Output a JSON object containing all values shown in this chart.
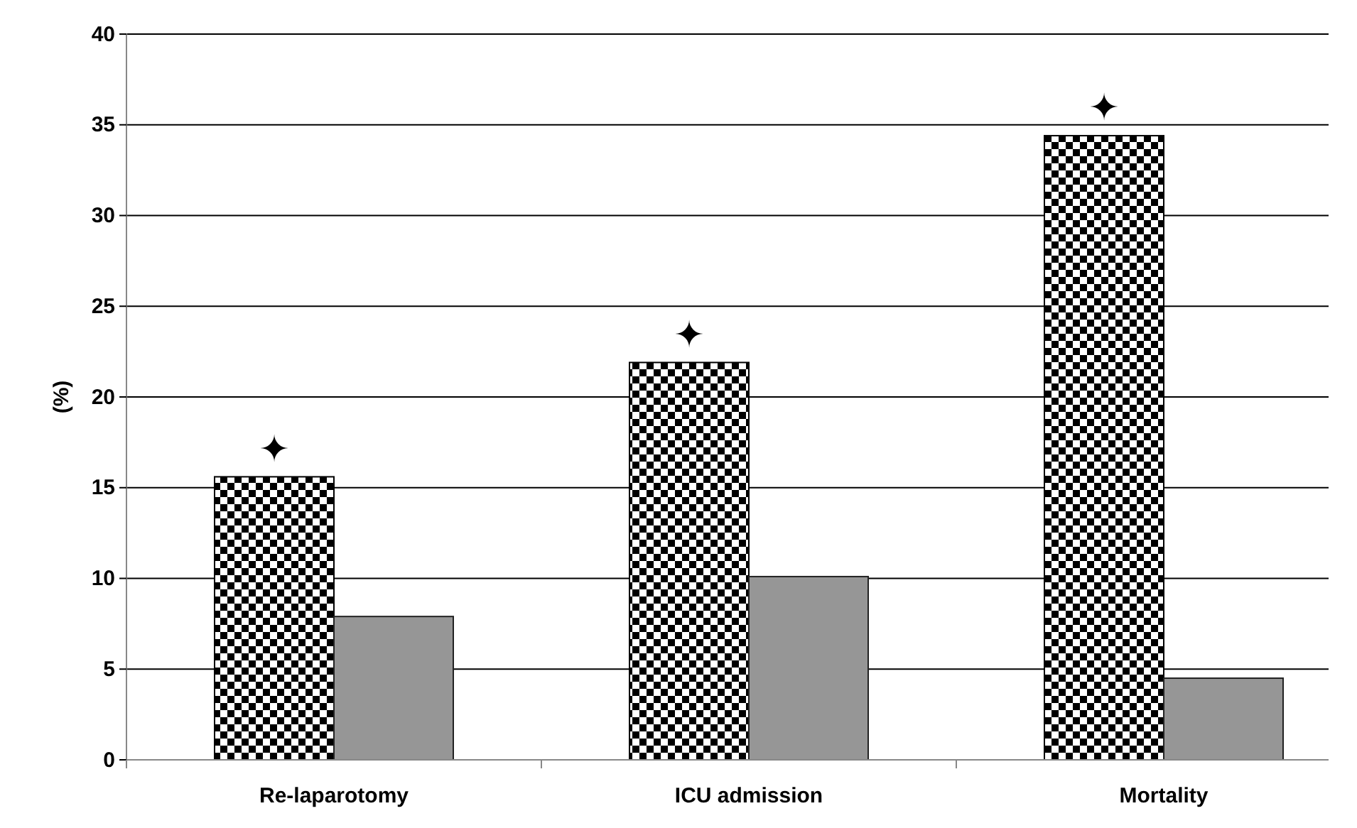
{
  "chart_data": {
    "type": "bar",
    "ylabel": "(%)",
    "categories": [
      "Re-laparotomy",
      "ICU admission",
      "Mortality"
    ],
    "series": [
      {
        "color": "#000000",
        "values": [
          15.6,
          21.9,
          34.4
        ]
      },
      {
        "color": "#969696",
        "values": [
          7.9,
          10.1,
          4.5
        ]
      }
    ],
    "ylim": [
      0,
      40
    ],
    "yticks": [
      0,
      5,
      10,
      15,
      20,
      25,
      30,
      35,
      40
    ],
    "grid": "y",
    "annotations": [
      "✦",
      "✦",
      "✦"
    ]
  }
}
